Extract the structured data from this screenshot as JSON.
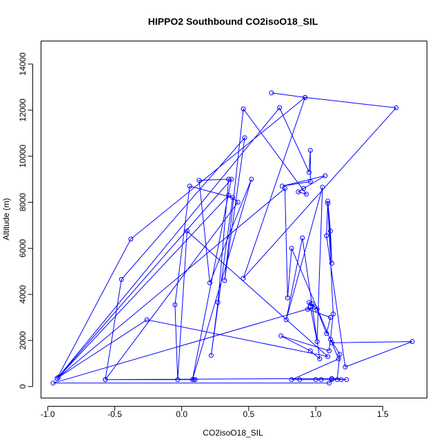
{
  "chart_data": {
    "type": "line",
    "title": "HIPPO2 Southbound CO2isoO18_SIL",
    "xlabel": "CO2isoO18_SIL",
    "ylabel": "Altitude (m)",
    "xlim": [
      -1.05,
      1.83
    ],
    "ylim": [
      -500,
      15000
    ],
    "xticks": [
      -1.0,
      -0.5,
      0.0,
      0.5,
      1.0,
      1.5
    ],
    "xtick_labels": [
      "-1.0",
      "-0.5",
      "0.0",
      "0.5",
      "1.0",
      "1.5"
    ],
    "yticks": [
      0,
      2000,
      4000,
      6000,
      8000,
      10000,
      12000,
      14000
    ],
    "ytick_labels": [
      "0",
      "2000",
      "4000",
      "6000",
      "8000",
      "10000",
      "12000",
      "14000"
    ],
    "grid": false,
    "colors": {
      "series": "#0000ff",
      "axes": "#000000"
    },
    "series": [
      {
        "marker": "open-circle",
        "points": [
          [
            0.67,
            12750
          ],
          [
            0.92,
            12550
          ],
          [
            1.6,
            12100
          ],
          [
            0.46,
            4700
          ],
          [
            0.92,
            12550
          ],
          [
            -0.38,
            6400
          ],
          [
            -0.93,
            350
          ],
          [
            0.73,
            12100
          ],
          [
            0.95,
            9300
          ],
          [
            0.96,
            10250
          ],
          [
            0.96,
            8900
          ],
          [
            0.75,
            8700
          ],
          [
            1.07,
            9150
          ],
          [
            0.91,
            8600
          ],
          [
            0.87,
            8450
          ],
          [
            0.93,
            8350
          ],
          [
            0.46,
            12050
          ],
          [
            0.32,
            4600
          ],
          [
            0.47,
            10800
          ],
          [
            -0.45,
            4650
          ],
          [
            -0.57,
            300
          ],
          [
            0.42,
            8000
          ],
          [
            0.35,
            8300
          ],
          [
            -0.93,
            350
          ],
          [
            0.37,
            9000
          ],
          [
            0.08,
            300
          ],
          [
            0.52,
            9000
          ],
          [
            0.21,
            4500
          ],
          [
            0.13,
            8950
          ],
          [
            0.35,
            9000
          ],
          [
            0.27,
            3650
          ],
          [
            0.22,
            1350
          ],
          [
            0.38,
            8200
          ],
          [
            0.06,
            8700
          ],
          [
            -0.05,
            3550
          ],
          [
            -0.03,
            300
          ],
          [
            0.04,
            6750
          ],
          [
            1.09,
            1300
          ],
          [
            -0.26,
            2900
          ],
          [
            -0.92,
            400
          ],
          [
            0.77,
            8600
          ],
          [
            0.79,
            3850
          ],
          [
            0.82,
            6000
          ],
          [
            1.12,
            1900
          ],
          [
            1.72,
            1950
          ],
          [
            1.22,
            850
          ],
          [
            1.08,
            6550
          ],
          [
            1.09,
            8050
          ],
          [
            1.11,
            6750
          ],
          [
            1.12,
            5350
          ],
          [
            1.09,
            7950
          ],
          [
            1.13,
            3150
          ],
          [
            1.1,
            1550
          ],
          [
            0.74,
            2200
          ],
          [
            0.96,
            1550
          ],
          [
            1.03,
            1200
          ],
          [
            0.9,
            6450
          ],
          [
            0.78,
            2900
          ],
          [
            1.05,
            8650
          ],
          [
            1.01,
            1950
          ],
          [
            0.96,
            3450
          ],
          [
            0.97,
            3600
          ],
          [
            1.01,
            3350
          ],
          [
            1.08,
            2300
          ],
          [
            1.11,
            3000
          ],
          [
            0.94,
            3350
          ],
          [
            0.95,
            3650
          ],
          [
            0.99,
            3450
          ],
          [
            -0.96,
            150
          ],
          [
            1.1,
            150
          ],
          [
            1.12,
            300
          ],
          [
            1.16,
            300
          ],
          [
            1.18,
            1400
          ],
          [
            1.11,
            2050
          ],
          [
            1.17,
            1200
          ],
          [
            0.82,
            300
          ],
          [
            0.88,
            300
          ],
          [
            1.0,
            300
          ],
          [
            1.04,
            300
          ],
          [
            1.19,
            300
          ],
          [
            1.23,
            300
          ],
          [
            1.12,
            350
          ],
          [
            -0.57,
            300
          ],
          [
            0.09,
            300
          ],
          [
            0.1,
            300
          ]
        ]
      }
    ]
  }
}
